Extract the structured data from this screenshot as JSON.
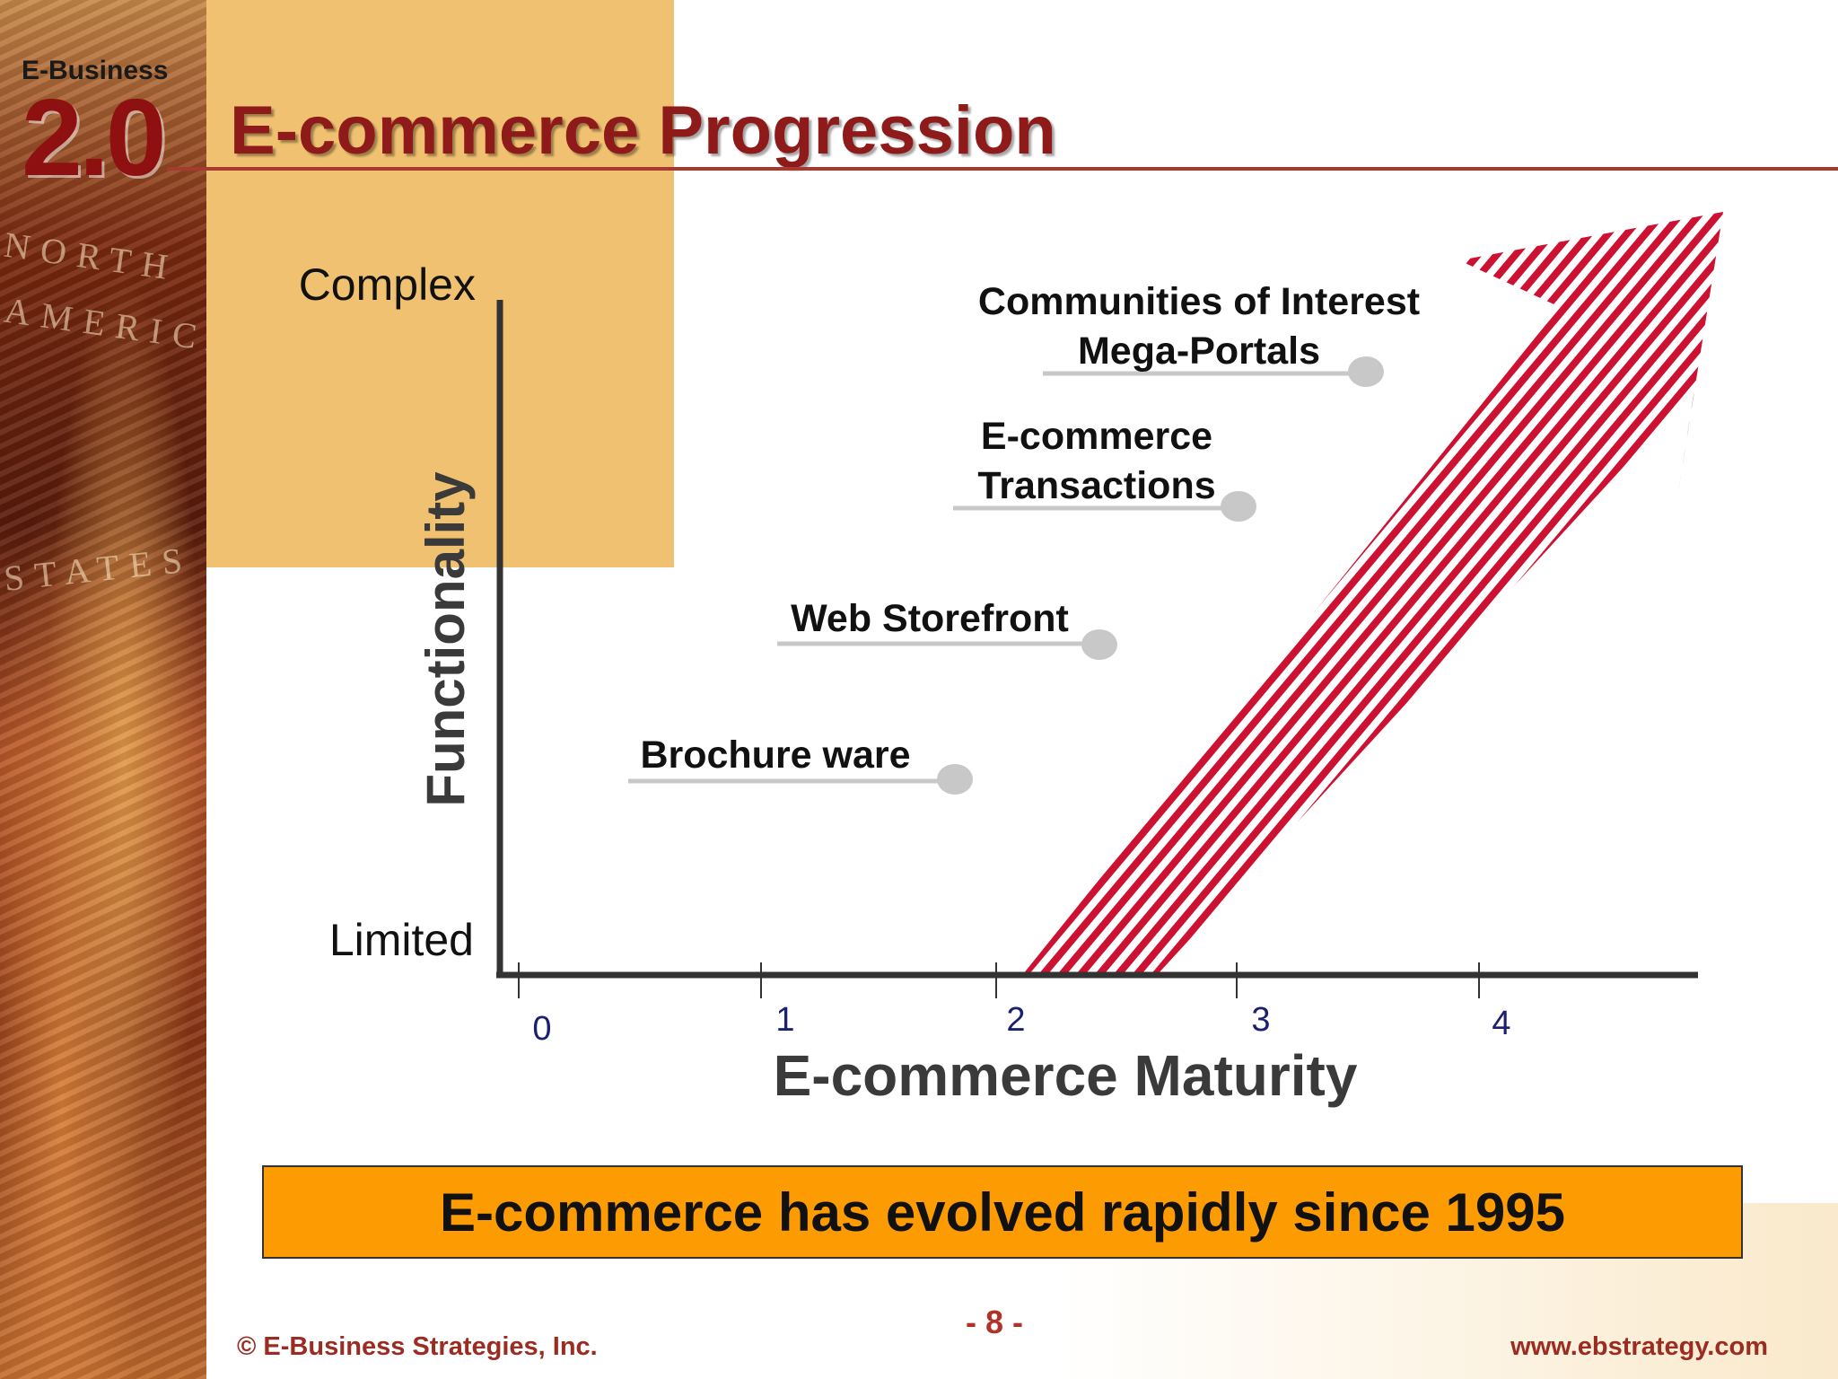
{
  "branding": {
    "series": "E-Business",
    "version": "2.0"
  },
  "slide": {
    "title": "E-commerce Progression"
  },
  "chart_data": {
    "type": "diagram",
    "ylabel": "Functionality",
    "y_top_label": "Complex",
    "y_bottom_label": "Limited",
    "xlabel": "E-commerce Maturity",
    "x_ticks": [
      "0",
      "1",
      "2",
      "3",
      "4"
    ],
    "stages": [
      {
        "lines": [
          "Brochure ware"
        ]
      },
      {
        "lines": [
          "Web Storefront"
        ]
      },
      {
        "lines": [
          "E-commerce",
          "Transactions"
        ]
      },
      {
        "lines": [
          "Communities of Interest",
          "Mega-Portals"
        ]
      }
    ],
    "colors": {
      "arrow": "#cc1133",
      "axis": "#333333",
      "marker": "#c8c8c8",
      "tick_labels": "#1a1f6e"
    }
  },
  "callout": {
    "text": "E-commerce has evolved rapidly since 1995"
  },
  "footer": {
    "copyright": "© E-Business Strategies, Inc.",
    "page": "- 8 -",
    "url": "www.ebstrategy.com"
  }
}
